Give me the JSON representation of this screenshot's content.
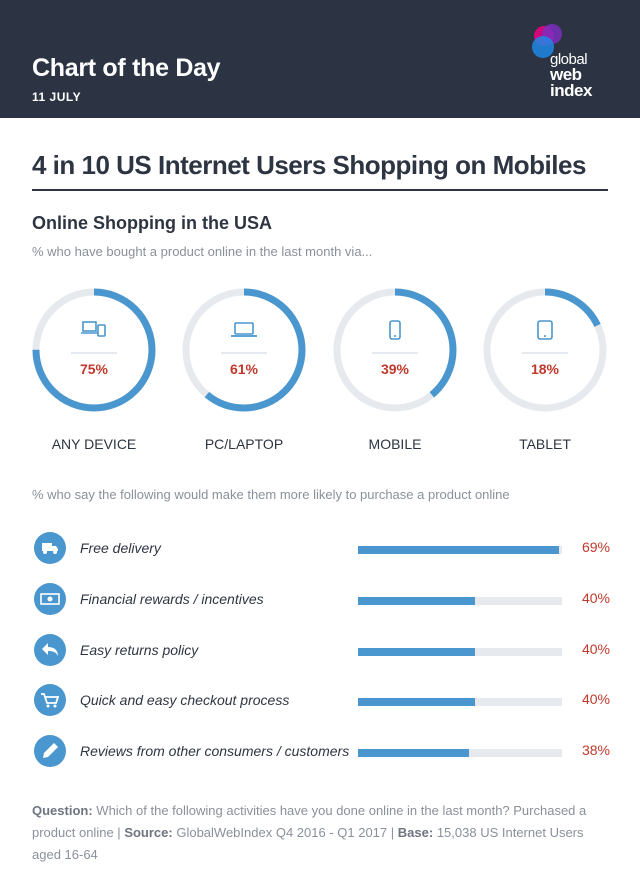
{
  "header": {
    "title": "Chart of the Day",
    "date": "11 JULY",
    "logo_lines": [
      "global",
      "web",
      "index"
    ]
  },
  "headline": "4 in 10 US Internet Users Shopping on Mobiles",
  "colors": {
    "header_bg": "#2c3443",
    "accent": "#4a97cf",
    "value_red": "#c0392b",
    "track": "#e6e9ee"
  },
  "chart_data": [
    {
      "type": "donut",
      "title": "Online Shopping in the USA",
      "subtitle": "% who have bought a product online in the last month via...",
      "categories": [
        "ANY DEVICE",
        "PC/LAPTOP",
        "MOBILE",
        "TABLET"
      ],
      "values": [
        75,
        61,
        39,
        18
      ],
      "value_labels": [
        "75%",
        "61%",
        "39%",
        "18%"
      ],
      "icons": [
        "devices-icon",
        "laptop-icon",
        "mobile-icon",
        "tablet-icon"
      ],
      "max": 100
    },
    {
      "type": "bar",
      "orientation": "horizontal",
      "subtitle": "% who say the following would make them more likely to purchase a product online",
      "categories": [
        "Free delivery",
        "Financial rewards / incentives",
        "Easy returns policy",
        "Quick and easy checkout process",
        "Reviews from other consumers / customers"
      ],
      "values": [
        69,
        40,
        40,
        40,
        38
      ],
      "value_labels": [
        "69%",
        "40%",
        "40%",
        "40%",
        "38%"
      ],
      "icons": [
        "truck-icon",
        "cash-icon",
        "return-arrow-icon",
        "cart-icon",
        "pencil-icon"
      ],
      "xlim": [
        0,
        70
      ]
    }
  ],
  "footer": {
    "question_label": "Question:",
    "question_text": "Which of the following activities have you done online in the last month? Purchased a product online",
    "source_label": "Source:",
    "source_text": "GlobalWebIndex Q4 2016 - Q1 2017",
    "base_label": "Base:",
    "base_text": "15,038 US Internet Users aged 16-64",
    "separator": "|"
  }
}
